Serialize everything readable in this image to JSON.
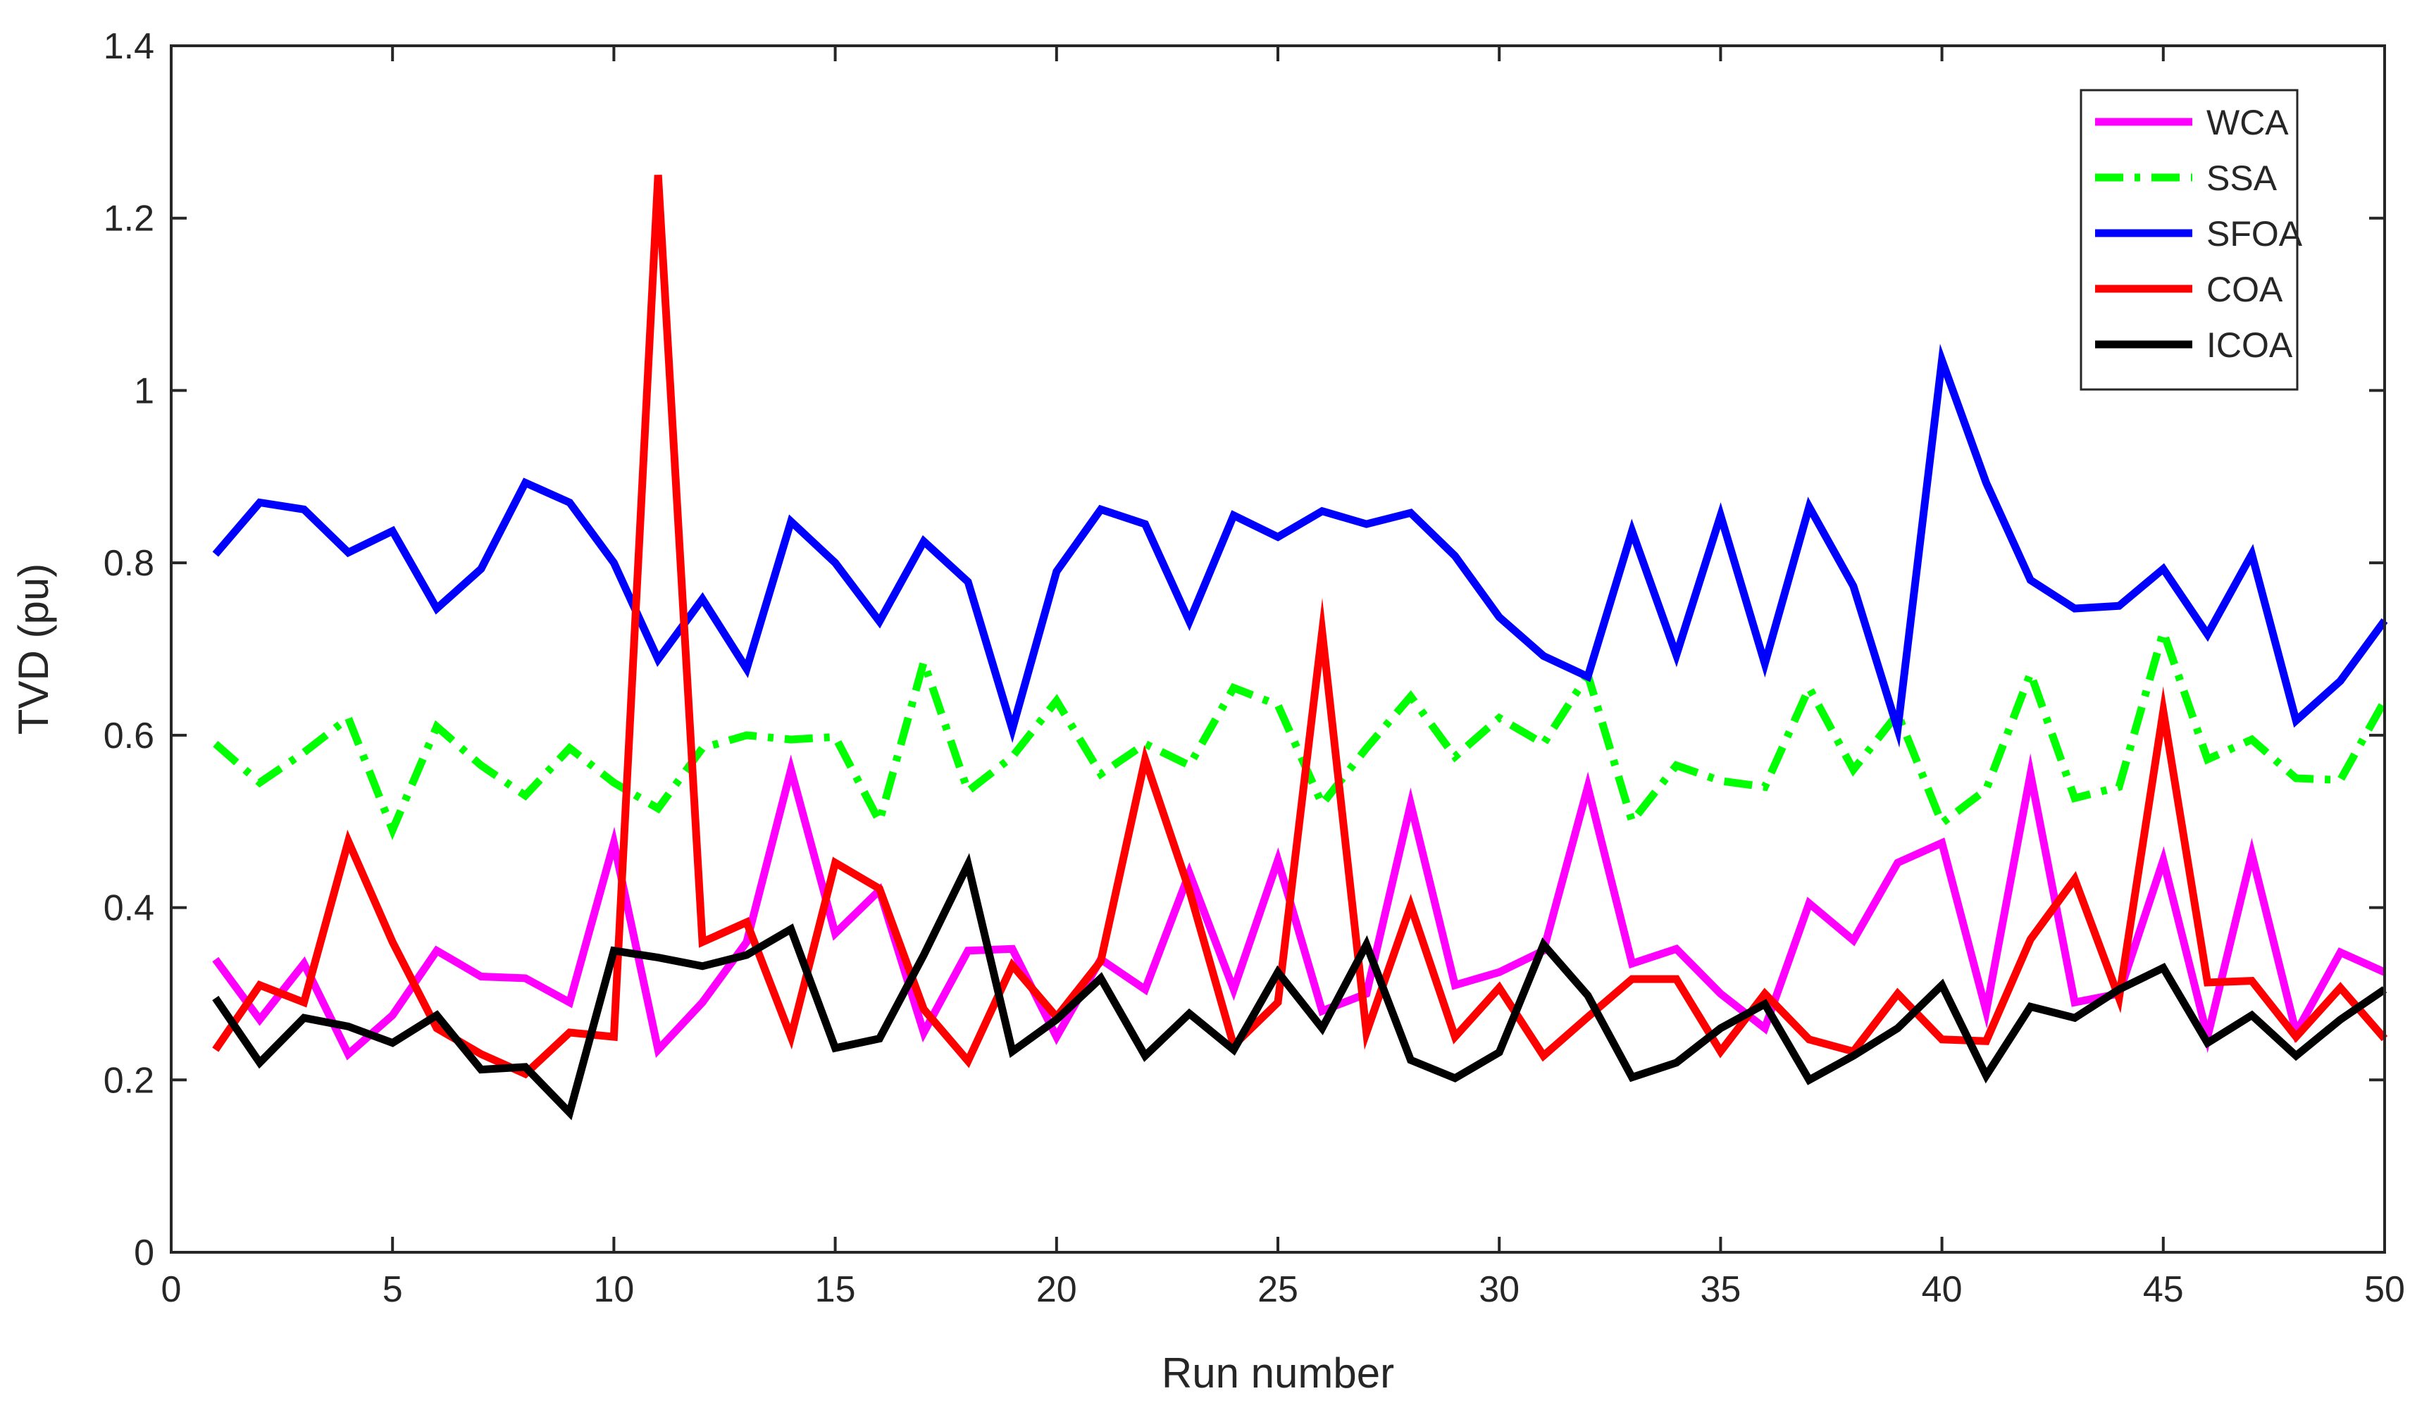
{
  "chart_data": {
    "type": "line",
    "title": "",
    "xlabel": "Run number",
    "ylabel": "TVD (pu)",
    "xlim": [
      0,
      50
    ],
    "ylim": [
      0,
      1.4
    ],
    "xticks": [
      0,
      5,
      10,
      15,
      20,
      25,
      30,
      35,
      40,
      45,
      50
    ],
    "yticks": [
      0,
      0.2,
      0.4,
      0.6,
      0.8,
      1,
      1.2,
      1.4
    ],
    "xtick_labels": [
      "0",
      "5",
      "10",
      "15",
      "20",
      "25",
      "30",
      "35",
      "40",
      "45",
      "50"
    ],
    "ytick_labels": [
      "0",
      "0.2",
      "0.4",
      "0.6",
      "0.8",
      "1",
      "1.2",
      "1.4"
    ],
    "grid": false,
    "legend_position": "top-right",
    "x": [
      1,
      2,
      3,
      4,
      5,
      6,
      7,
      8,
      9,
      10,
      11,
      12,
      13,
      14,
      15,
      16,
      17,
      18,
      19,
      20,
      21,
      22,
      23,
      24,
      25,
      26,
      27,
      28,
      29,
      30,
      31,
      32,
      33,
      34,
      35,
      36,
      37,
      38,
      39,
      40,
      41,
      42,
      43,
      44,
      45,
      46,
      47,
      48,
      49,
      50
    ],
    "series": [
      {
        "name": "WCA",
        "color": "#ff00ff",
        "dash": "solid",
        "values": [
          0.34,
          0.27,
          0.335,
          0.23,
          0.275,
          0.35,
          0.32,
          0.318,
          0.29,
          0.475,
          0.235,
          0.29,
          0.36,
          0.56,
          0.37,
          0.42,
          0.255,
          0.35,
          0.352,
          0.25,
          0.34,
          0.305,
          0.44,
          0.305,
          0.455,
          0.28,
          0.3,
          0.52,
          0.31,
          0.325,
          0.35,
          0.54,
          0.335,
          0.352,
          0.3,
          0.26,
          0.405,
          0.362,
          0.452,
          0.475,
          0.28,
          0.555,
          0.29,
          0.3,
          0.455,
          0.25,
          0.462,
          0.255,
          0.348,
          0.325
        ]
      },
      {
        "name": "SSA",
        "color": "#00ff00",
        "dash": "dashdot",
        "values": [
          0.59,
          0.545,
          0.58,
          0.62,
          0.49,
          0.61,
          0.565,
          0.53,
          0.585,
          0.545,
          0.515,
          0.585,
          0.6,
          0.595,
          0.598,
          0.5,
          0.685,
          0.535,
          0.575,
          0.64,
          0.555,
          0.59,
          0.565,
          0.655,
          0.635,
          0.52,
          0.585,
          0.645,
          0.575,
          0.62,
          0.59,
          0.67,
          0.5,
          0.565,
          0.547,
          0.54,
          0.655,
          0.56,
          0.625,
          0.498,
          0.537,
          0.672,
          0.527,
          0.54,
          0.72,
          0.572,
          0.595,
          0.55,
          0.548,
          0.64
        ]
      },
      {
        "name": "SFOA",
        "color": "#0000ff",
        "dash": "solid",
        "values": [
          0.81,
          0.87,
          0.862,
          0.812,
          0.837,
          0.747,
          0.793,
          0.893,
          0.87,
          0.8,
          0.688,
          0.758,
          0.677,
          0.848,
          0.8,
          0.732,
          0.825,
          0.778,
          0.607,
          0.79,
          0.862,
          0.845,
          0.732,
          0.855,
          0.83,
          0.86,
          0.845,
          0.858,
          0.808,
          0.737,
          0.692,
          0.668,
          0.837,
          0.693,
          0.855,
          0.683,
          0.865,
          0.773,
          0.607,
          1.035,
          0.893,
          0.78,
          0.747,
          0.75,
          0.793,
          0.717,
          0.81,
          0.617,
          0.663,
          0.733
        ]
      },
      {
        "name": "COA",
        "color": "#ff0000",
        "dash": "solid",
        "values": [
          0.235,
          0.31,
          0.29,
          0.477,
          0.36,
          0.26,
          0.23,
          0.207,
          0.255,
          0.25,
          1.25,
          0.36,
          0.383,
          0.25,
          0.452,
          0.422,
          0.282,
          0.222,
          0.333,
          0.273,
          0.338,
          0.572,
          0.42,
          0.24,
          0.29,
          0.72,
          0.255,
          0.402,
          0.25,
          0.307,
          0.228,
          0.273,
          0.317,
          0.317,
          0.233,
          0.3,
          0.247,
          0.233,
          0.3,
          0.247,
          0.245,
          0.363,
          0.433,
          0.295,
          0.628,
          0.313,
          0.315,
          0.25,
          0.307,
          0.248
        ]
      },
      {
        "name": "ICOA",
        "color": "#000000",
        "dash": "solid",
        "values": [
          0.295,
          0.22,
          0.272,
          0.262,
          0.243,
          0.275,
          0.212,
          0.215,
          0.162,
          0.35,
          0.342,
          0.332,
          0.345,
          0.375,
          0.237,
          0.248,
          0.345,
          0.45,
          0.233,
          0.27,
          0.318,
          0.228,
          0.277,
          0.235,
          0.325,
          0.26,
          0.357,
          0.223,
          0.202,
          0.232,
          0.357,
          0.298,
          0.203,
          0.22,
          0.26,
          0.288,
          0.2,
          0.228,
          0.26,
          0.31,
          0.205,
          0.285,
          0.272,
          0.305,
          0.33,
          0.243,
          0.275,
          0.228,
          0.27,
          0.305
        ]
      }
    ]
  }
}
